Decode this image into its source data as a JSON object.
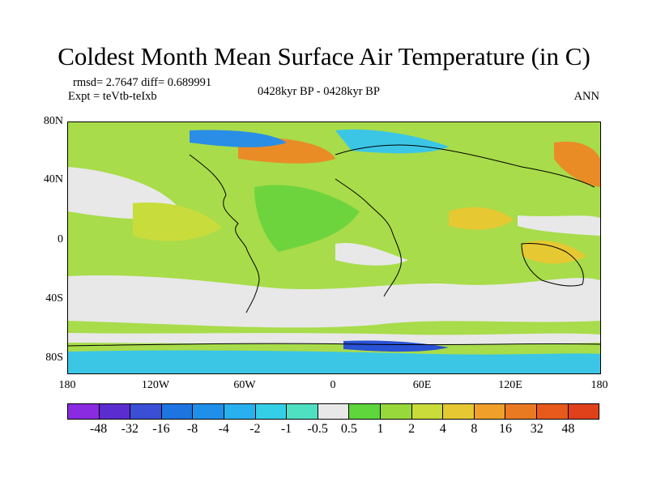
{
  "title": "Coldest Month Mean Surface Air Temperature (in C)",
  "stats_line": "rmsd= 2.7647 diff= 0.689991",
  "expt_line": "Expt = teVtb-teIxb",
  "period": "0428kyr BP - 0428kyr BP",
  "season": "ANN",
  "lat_ticks": [
    "80N",
    "40N",
    "0",
    "40S",
    "80S"
  ],
  "lon_ticks": [
    "180",
    "120W",
    "60W",
    "0",
    "60E",
    "120E",
    "180"
  ],
  "colorbar": {
    "labels": [
      "-48",
      "-32",
      "-16",
      "-8",
      "-4",
      "-2",
      "-1",
      "-0.5",
      "0.5",
      "1",
      "2",
      "4",
      "8",
      "16",
      "32",
      "48"
    ],
    "colors": [
      "#8a2be2",
      "#5b2cd0",
      "#3a4fd6",
      "#1e74e0",
      "#1e90ea",
      "#29b0ee",
      "#34cfe6",
      "#4fe0c2",
      "#e8e8e8",
      "#5ed63c",
      "#98d83a",
      "#c9dc3a",
      "#e6c832",
      "#eea02a",
      "#ea7a22",
      "#e85a1c",
      "#e0401a"
    ]
  },
  "map_colors": {
    "ocean_neutral": "#e8e8e8",
    "light_green": "#a8dc4a",
    "green": "#6ed43e",
    "yellow_green": "#c8dc3c",
    "yellow": "#e6c832",
    "orange": "#ea8c26",
    "cyan": "#3cc6e6",
    "blue": "#2a8ee6",
    "dark_blue": "#2a52d4",
    "coast": "#000000"
  }
}
